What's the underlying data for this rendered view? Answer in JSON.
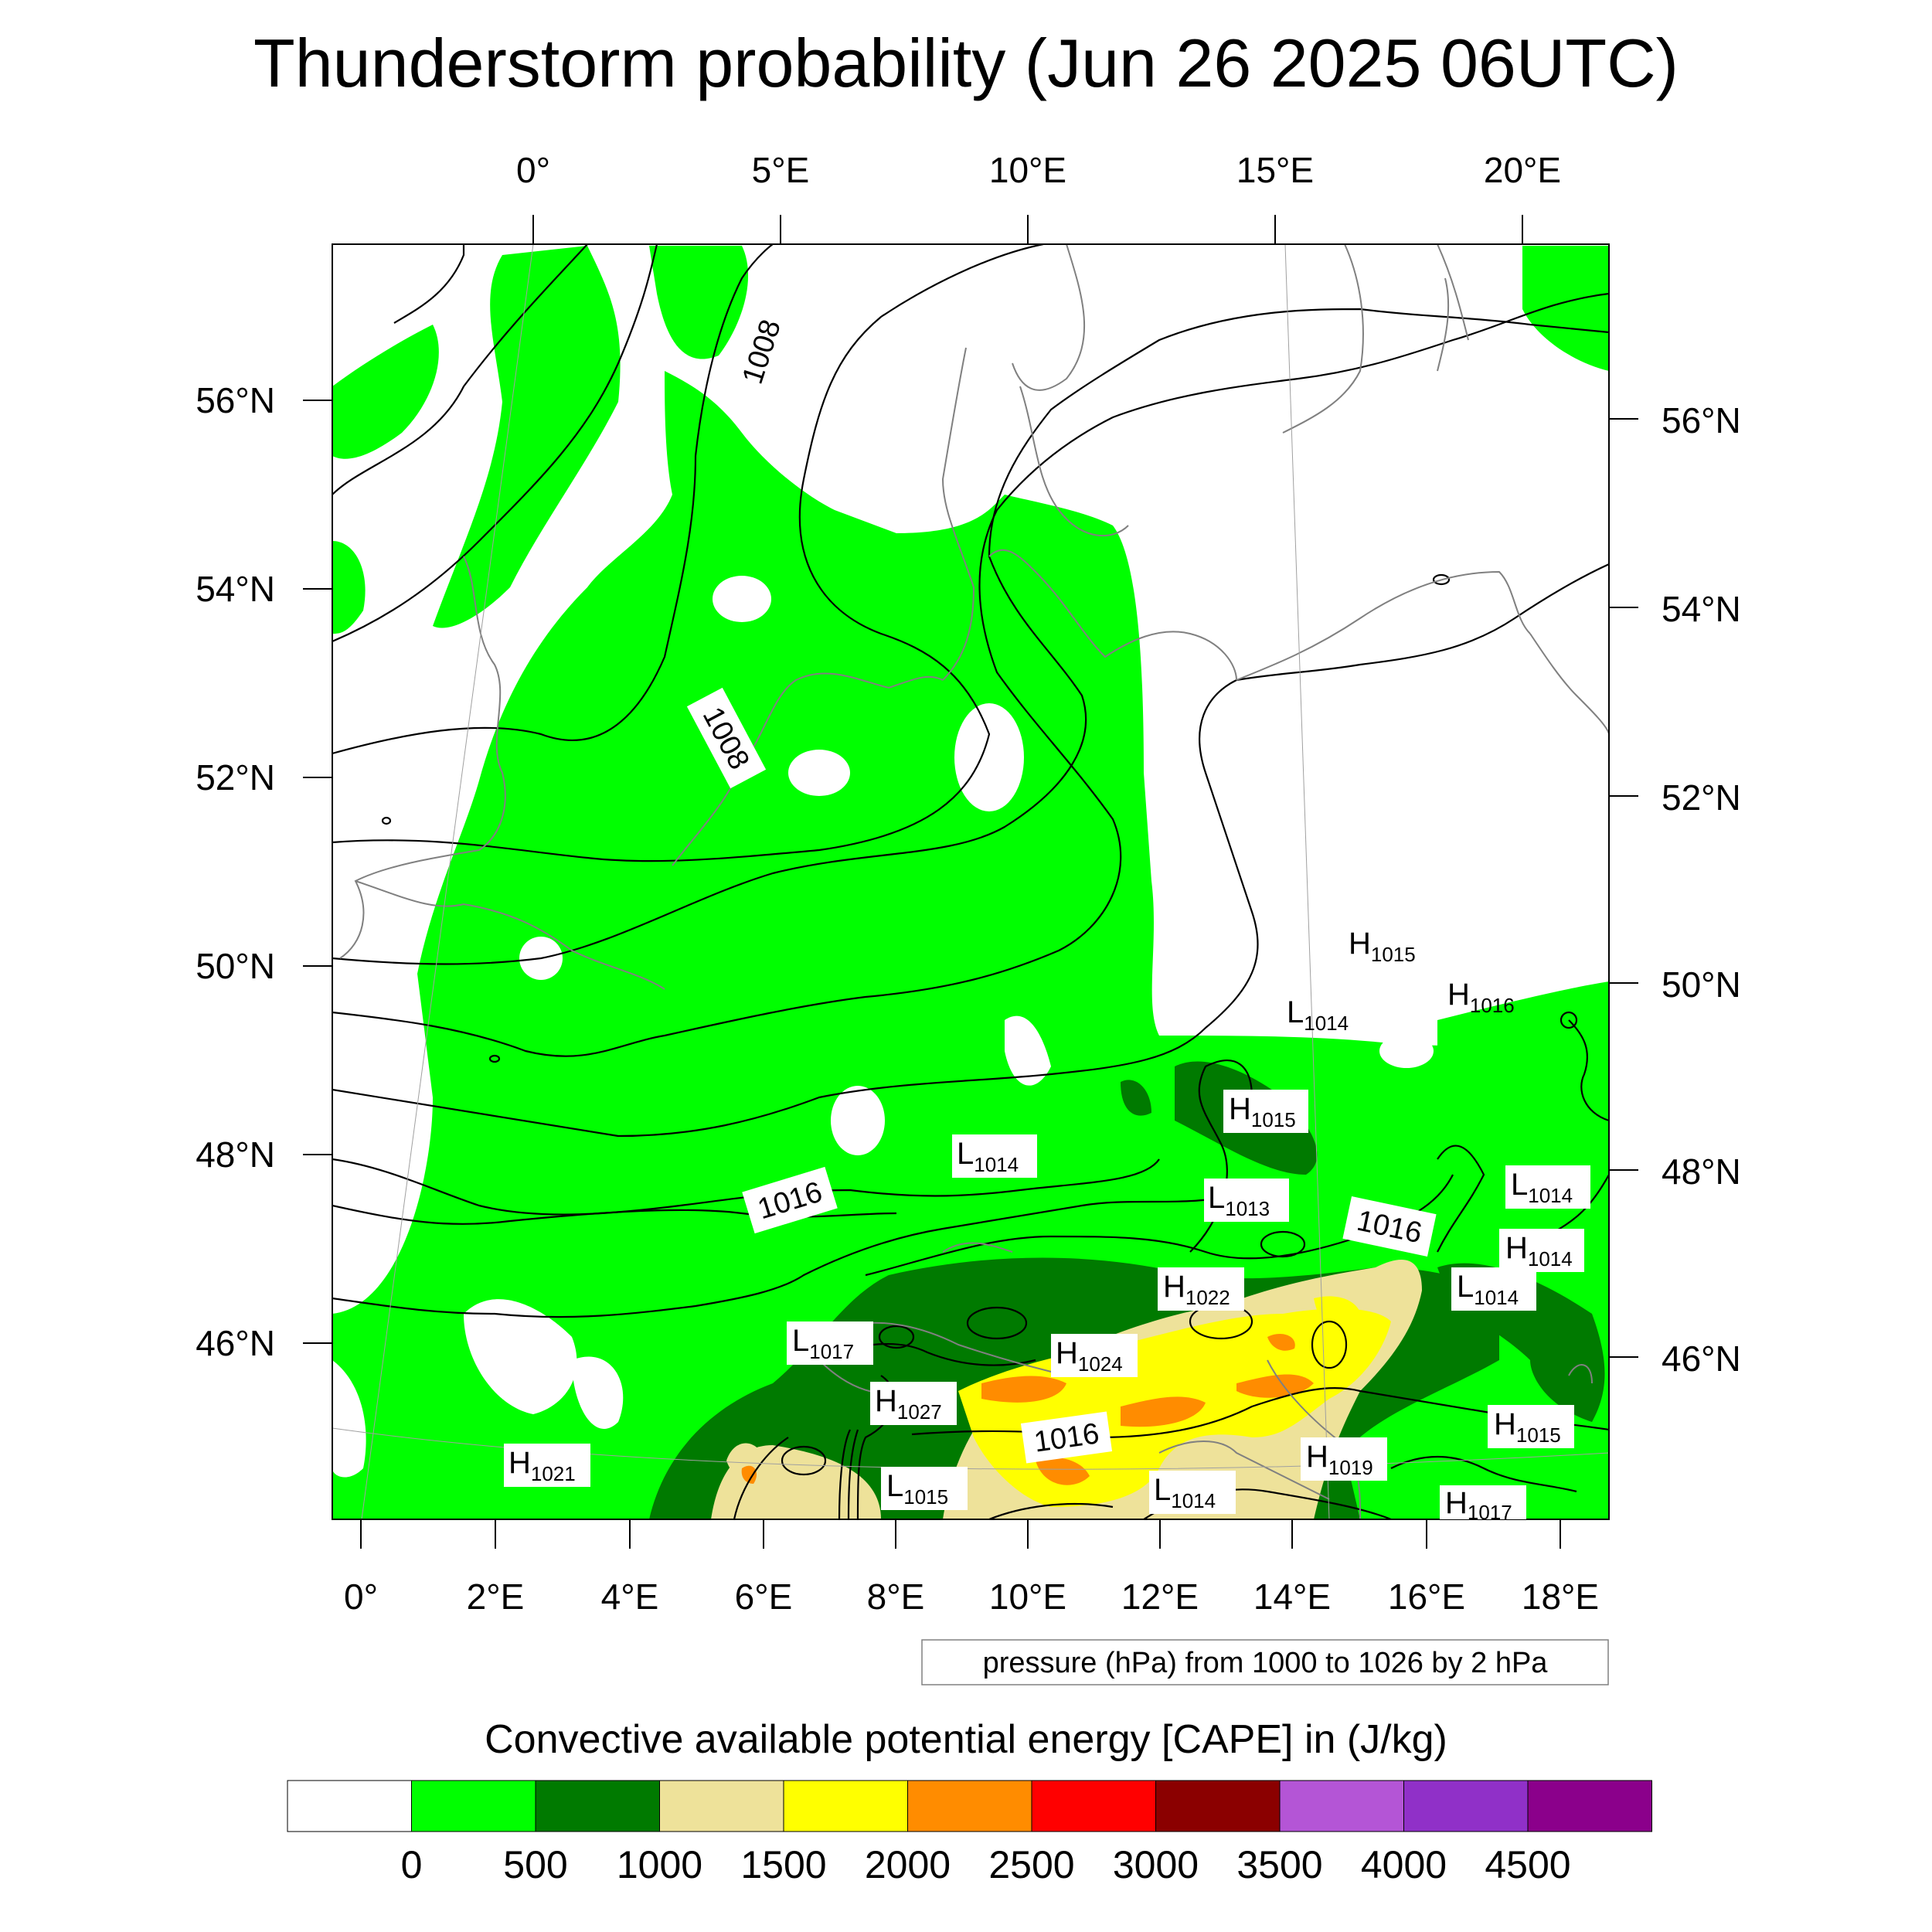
{
  "title": "Thunderstorm probability (Jun 26 2025 06UTC)",
  "top_lon_ticks": [
    "0°",
    "5°E",
    "10°E",
    "15°E",
    "20°E"
  ],
  "bottom_lon_ticks": [
    "0°",
    "2°E",
    "4°E",
    "6°E",
    "8°E",
    "10°E",
    "12°E",
    "14°E",
    "16°E",
    "18°E"
  ],
  "left_lat_ticks": [
    "56°N",
    "54°N",
    "52°N",
    "50°N",
    "48°N",
    "46°N"
  ],
  "right_lat_ticks": [
    "56°N",
    "54°N",
    "52°N",
    "50°N",
    "48°N",
    "46°N"
  ],
  "isobar_labels": [
    "1008",
    "1008",
    "1016",
    "1016",
    "1016"
  ],
  "pressure_centers": [
    {
      "type": "H",
      "value": "1015"
    },
    {
      "type": "H",
      "value": "1016"
    },
    {
      "type": "L",
      "value": "1014"
    },
    {
      "type": "H",
      "value": "1015"
    },
    {
      "type": "L",
      "value": "1014"
    },
    {
      "type": "L",
      "value": "1013"
    },
    {
      "type": "L",
      "value": "1014"
    },
    {
      "type": "H",
      "value": "1014"
    },
    {
      "type": "L",
      "value": "1014"
    },
    {
      "type": "H",
      "value": "1022"
    },
    {
      "type": "L",
      "value": "1017"
    },
    {
      "type": "H",
      "value": "1024"
    },
    {
      "type": "H",
      "value": "1027"
    },
    {
      "type": "H",
      "value": "1015"
    },
    {
      "type": "H",
      "value": "1021"
    },
    {
      "type": "L",
      "value": "1015"
    },
    {
      "type": "L",
      "value": "1014"
    },
    {
      "type": "H",
      "value": "1019"
    },
    {
      "type": "H",
      "value": "1017"
    }
  ],
  "pressure_note": "pressure (hPa) from 1000 to 1026 by 2 hPa",
  "colorbar": {
    "title": "Convective available potential energy [CAPE] in (J/kg)",
    "colors": [
      "#ffffff",
      "#00ff00",
      "#007a00",
      "#eee29a",
      "#ffff00",
      "#ff8c00",
      "#ff0000",
      "#8b0000",
      "#b455d6",
      "#9030c8",
      "#8b008b"
    ],
    "labels": [
      "0",
      "500",
      "1000",
      "1500",
      "2000",
      "2500",
      "3000",
      "3500",
      "4000",
      "4500"
    ]
  },
  "palette": {
    "white": "#ffffff",
    "green": "#00ff00",
    "dark_green": "#007a00",
    "khaki": "#eee29a",
    "yellow": "#ffff00",
    "orange": "#ff8c00"
  }
}
